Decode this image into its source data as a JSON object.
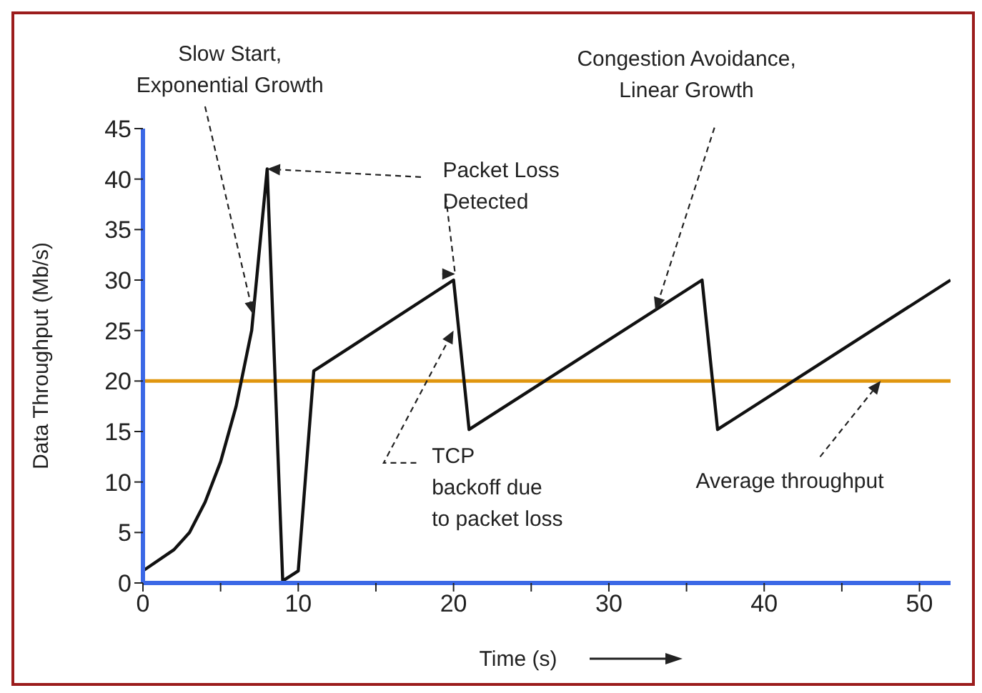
{
  "chart_data": {
    "type": "line",
    "xlabel": "Time (s)",
    "ylabel": "Data Throughput (Mb/s)",
    "x": [
      0,
      2,
      3,
      4,
      5,
      6,
      7,
      8,
      9,
      10,
      11,
      20,
      21,
      36,
      37,
      52
    ],
    "series": [
      {
        "color": "#111111",
        "values": [
          1.2,
          3.3,
          5,
          8,
          12,
          17.5,
          25,
          41,
          0.2,
          1.2,
          21,
          30,
          15.2,
          30,
          15.2,
          30
        ]
      }
    ],
    "xlim": [
      0,
      52
    ],
    "xticks": [
      0,
      {
        "value": 5,
        "label": null
      },
      10,
      {
        "value": 15,
        "label": null
      },
      20,
      {
        "value": 25,
        "label": null
      },
      30,
      {
        "value": 35,
        "label": null
      },
      40,
      {
        "value": 45,
        "label": null
      },
      50
    ],
    "ylim": [
      0,
      45
    ],
    "yticks": [
      0,
      5,
      10,
      15,
      20,
      25,
      30,
      35,
      40,
      45
    ],
    "ref_lines": [
      {
        "axis": "y",
        "value": 20,
        "color": "#e0960f"
      }
    ],
    "annotations": [
      {
        "text": "Slow Start,\nExponential Growth",
        "x": 7.1,
        "y": 26.6
      },
      {
        "text": "Packet Loss\nDetected",
        "x": 8,
        "y": 41
      },
      {
        "text": "Congestion Avoidance,\nLinear Growth",
        "x": 33,
        "y": 27
      },
      {
        "text": "TCP\nbackoff due\nto packet loss",
        "x": 20,
        "y": 25
      },
      {
        "text": "Average throughput",
        "x": 47.5,
        "y": 20
      }
    ],
    "marker": "none",
    "line_style": "solid"
  }
}
